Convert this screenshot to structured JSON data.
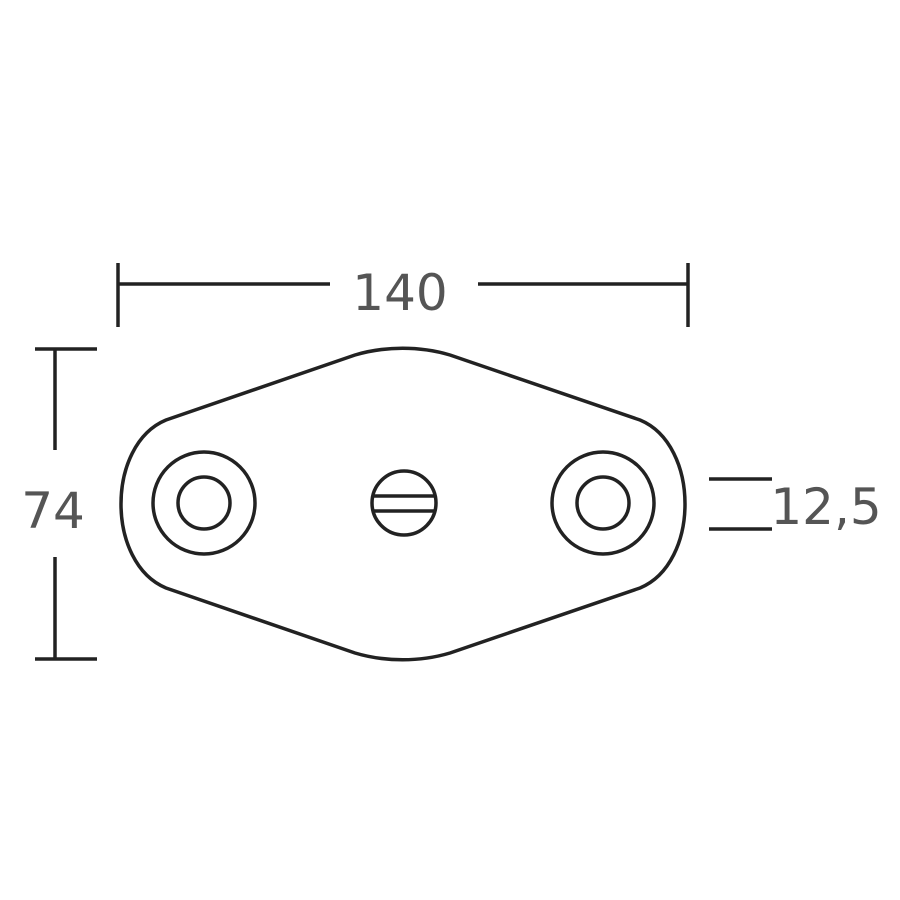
{
  "dimensions": {
    "width_label": "140",
    "height_label": "74",
    "hole_label": "12,5"
  },
  "colors": {
    "line": "#222222",
    "text": "#555555",
    "background": "#ffffff"
  }
}
